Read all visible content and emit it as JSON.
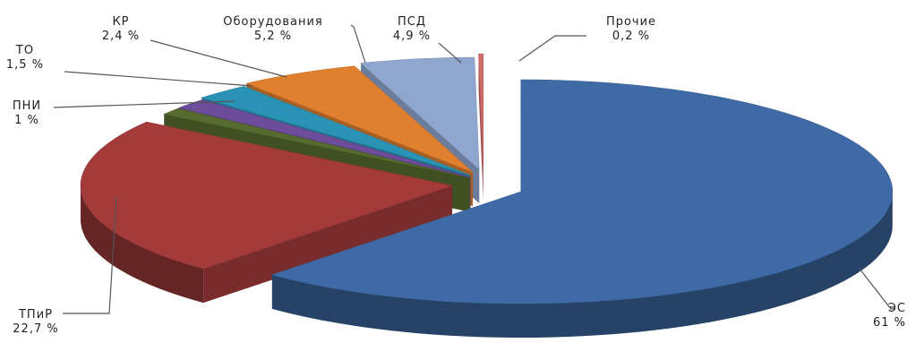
{
  "chart_data": {
    "type": "pie",
    "style": "3d-exploded",
    "slices": [
      {
        "label": "ЭС",
        "value": 61,
        "value_label": "61 %",
        "color": "#3e6aa6"
      },
      {
        "label": "ТПиР",
        "value": 22.7,
        "value_label": "22,7 %",
        "color": "#a33b3b"
      },
      {
        "label": "ПНИ",
        "value": 1,
        "value_label": "1 %",
        "color": "#556b2f"
      },
      {
        "label": "ТО",
        "value": 1.5,
        "value_label": "1,5 %",
        "color": "#6d4c9b"
      },
      {
        "label": "КР",
        "value": 2.4,
        "value_label": "2,4 %",
        "color": "#2a93b5"
      },
      {
        "label": "Оборудования",
        "value": 5.2,
        "value_label": "5,2 %",
        "color": "#e07f2e"
      },
      {
        "label": "ПСД",
        "value": 4.9,
        "value_label": "4,9 %",
        "color": "#8fa6cf"
      },
      {
        "label": "Прочие",
        "value": 0.2,
        "value_label": "0,2 %",
        "color": "#cf6b6b"
      }
    ]
  }
}
